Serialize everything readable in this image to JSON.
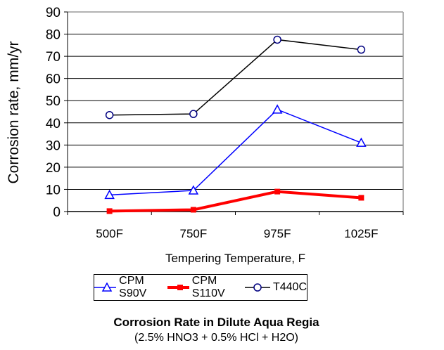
{
  "chart_data": {
    "type": "line",
    "title": "Corrosion Rate in Dilute Aqua Regia",
    "subtitle": "(2.5% HNO3 + 0.5% HCl + H2O)",
    "xlabel": "Tempering Temperature, F",
    "ylabel": "Corrosion rate, mm/yr",
    "categories": [
      "500F",
      "750F",
      "975F",
      "1025F"
    ],
    "ylim": [
      0,
      90
    ],
    "yticks": [
      "0",
      "10",
      "20",
      "30",
      "40",
      "50",
      "60",
      "70",
      "80",
      "90"
    ],
    "grid": true,
    "legend_position": "bottom",
    "series": [
      {
        "name": "CPM S90V",
        "color": "#0000ff",
        "marker": "triangle",
        "values": [
          7.5,
          9.5,
          46,
          31
        ]
      },
      {
        "name": "CPM S110V",
        "color": "#ff0000",
        "marker": "square",
        "values": [
          0.2,
          0.8,
          9,
          6.2
        ]
      },
      {
        "name": "T440C",
        "color": "#000000",
        "marker": "circle",
        "values": [
          43.5,
          44,
          77.5,
          73
        ]
      }
    ]
  }
}
